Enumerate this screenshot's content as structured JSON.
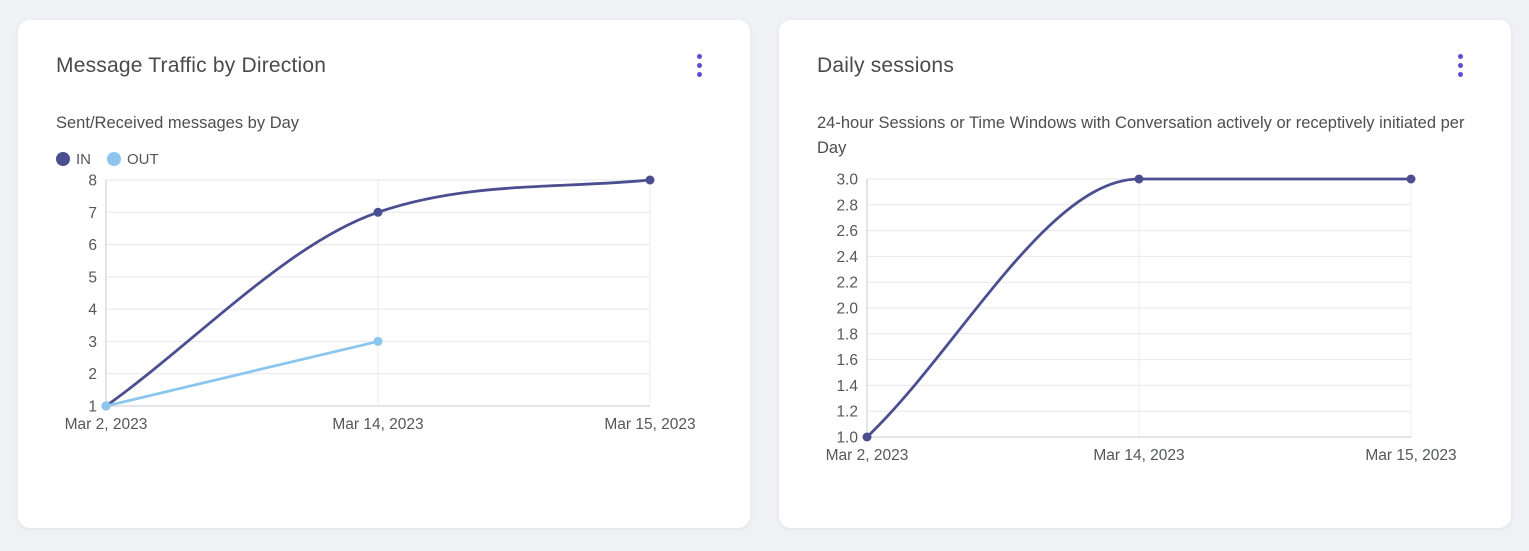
{
  "colors": {
    "page_bg": "#f0f1f5",
    "card_bg": "#ffffff",
    "menu": "#5a4ed1",
    "grid": "#e6e7eb",
    "axis": "#c9cbd3",
    "tick_text": "#55575c"
  },
  "cards": [
    {
      "title": "Message Traffic by Direction",
      "subtitle": "Sent/Received messages by Day"
    },
    {
      "title": "Daily sessions",
      "subtitle": "24-hour Sessions or Time Windows with Conversation actively or receptively initiated per Day"
    }
  ],
  "chart_data": [
    {
      "type": "line",
      "title": "Message Traffic by Direction",
      "subtitle": "Sent/Received messages by Day",
      "x": [
        "Mar 2, 2023",
        "Mar 14, 2023",
        "Mar 15, 2023"
      ],
      "series": [
        {
          "name": "IN",
          "color": "#4b4f90",
          "values": [
            1,
            7,
            8
          ]
        },
        {
          "name": "OUT",
          "color": "#8cc6ee",
          "values": [
            1,
            3,
            null
          ]
        }
      ],
      "ylim": [
        1,
        8
      ],
      "yticks": [
        1,
        2,
        3,
        4,
        5,
        6,
        7,
        8
      ],
      "ytick_labels": [
        "1",
        "2",
        "3",
        "4",
        "5",
        "6",
        "7",
        "8"
      ],
      "grid": true,
      "smooth": true,
      "legend_position": "top-left"
    },
    {
      "type": "line",
      "title": "Daily sessions",
      "subtitle": "24-hour Sessions or Time Windows with Conversation actively or receptively initiated per Day",
      "x": [
        "Mar 2, 2023",
        "Mar 14, 2023",
        "Mar 15, 2023"
      ],
      "series": [
        {
          "name": "Daily sessions",
          "color": "#4b4f90",
          "values": [
            1.0,
            3.0,
            3.0
          ]
        }
      ],
      "ylim": [
        1.0,
        3.0
      ],
      "yticks": [
        1.0,
        1.2,
        1.4,
        1.6,
        1.8,
        2.0,
        2.2,
        2.4,
        2.6,
        2.8,
        3.0
      ],
      "ytick_labels": [
        "1.0",
        "1.2",
        "1.4",
        "1.6",
        "1.8",
        "2.0",
        "2.2",
        "2.4",
        "2.6",
        "2.8",
        "3.0"
      ],
      "grid": true,
      "smooth": true,
      "legend_position": "none"
    }
  ]
}
